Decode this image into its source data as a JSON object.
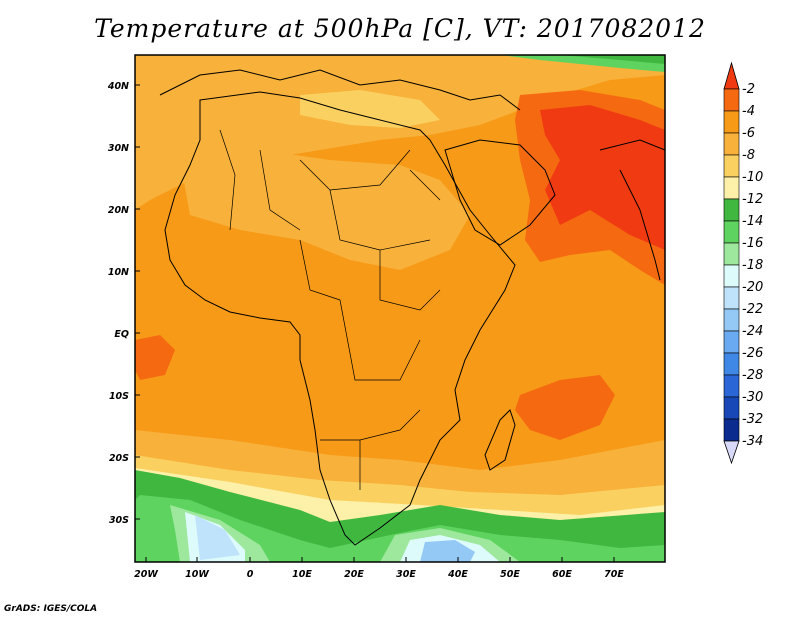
{
  "title": "Temperature at 500hPa [C], VT: 2017082012",
  "credit": "GrADS: IGES/COLA",
  "map": {
    "region": "Africa and Arabian Peninsula",
    "lon_range": [
      -25,
      80
    ],
    "lat_range": [
      -37,
      45
    ],
    "lat_ticks": [
      "40N",
      "30N",
      "20N",
      "10N",
      "EQ",
      "10S",
      "20S",
      "30S"
    ],
    "lon_ticks": [
      "20W",
      "10W",
      "0",
      "10E",
      "20E",
      "30E",
      "40E",
      "50E",
      "60E",
      "70E"
    ]
  },
  "colorbar": {
    "labels": [
      "-2",
      "-4",
      "-6",
      "-8",
      "-10",
      "-12",
      "-14",
      "-16",
      "-18",
      "-20",
      "-22",
      "-24",
      "-26",
      "-28",
      "-30",
      "-32",
      "-34"
    ],
    "colors": [
      "#f03a12",
      "#f56a10",
      "#f79a18",
      "#f8b13a",
      "#fad160",
      "#fdf0a8",
      "#40b840",
      "#5fd35f",
      "#9de89d",
      "#ddfbfb",
      "#bfe3fb",
      "#94c8f5",
      "#6aaaf0",
      "#4088e6",
      "#2a66d6",
      "#1848b8",
      "#0c2b8f",
      "#0a1466"
    ],
    "top_color": "#f03a12",
    "bottom_color": "#d8d8f8"
  }
}
